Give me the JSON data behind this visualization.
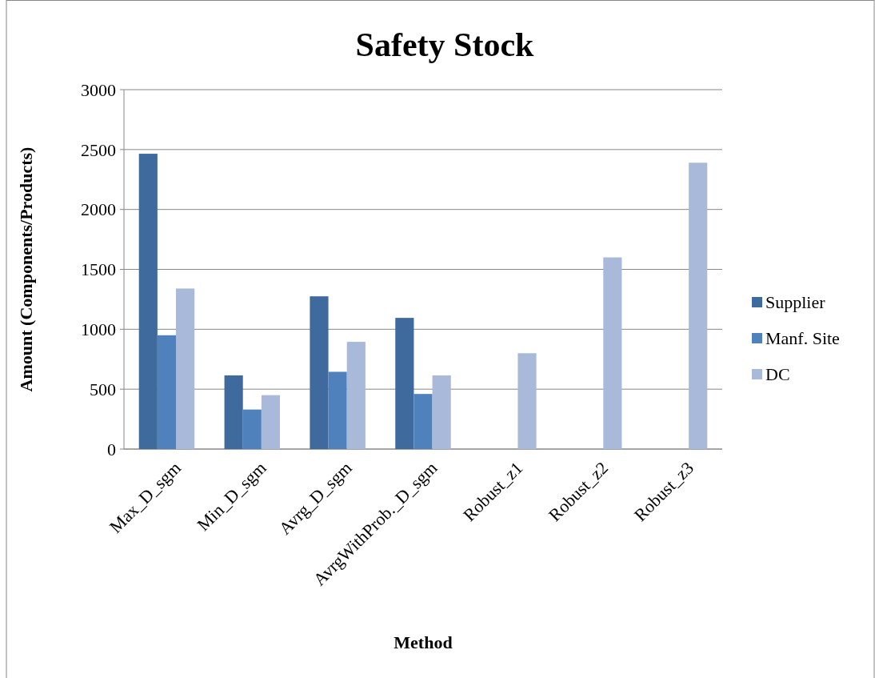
{
  "chart_data": {
    "type": "bar",
    "title": "Safety Stock",
    "xlabel": "Method",
    "ylabel": "Amount (Components/Products)",
    "categories": [
      "Max_D_sgm",
      "Min_D_sgm",
      "Avrg_D_sgm",
      "AvrgWithProb._D_sgm",
      "Robust_z1",
      "Robust_z2",
      "Robust_z3"
    ],
    "series": [
      {
        "name": "Supplier",
        "color": "#3f6a9e",
        "values": [
          2465,
          615,
          1275,
          1095,
          null,
          null,
          null
        ]
      },
      {
        "name": "Manf. Site",
        "color": "#4f81bd",
        "values": [
          950,
          330,
          645,
          460,
          null,
          null,
          null
        ]
      },
      {
        "name": "DC",
        "color": "#a9b9d9",
        "values": [
          1340,
          450,
          895,
          615,
          800,
          1600,
          2390
        ]
      }
    ],
    "ylim": [
      0,
      3000
    ],
    "yticks": [
      0,
      500,
      1000,
      1500,
      2000,
      2500,
      3000
    ],
    "grid": "y",
    "legend": "right"
  }
}
